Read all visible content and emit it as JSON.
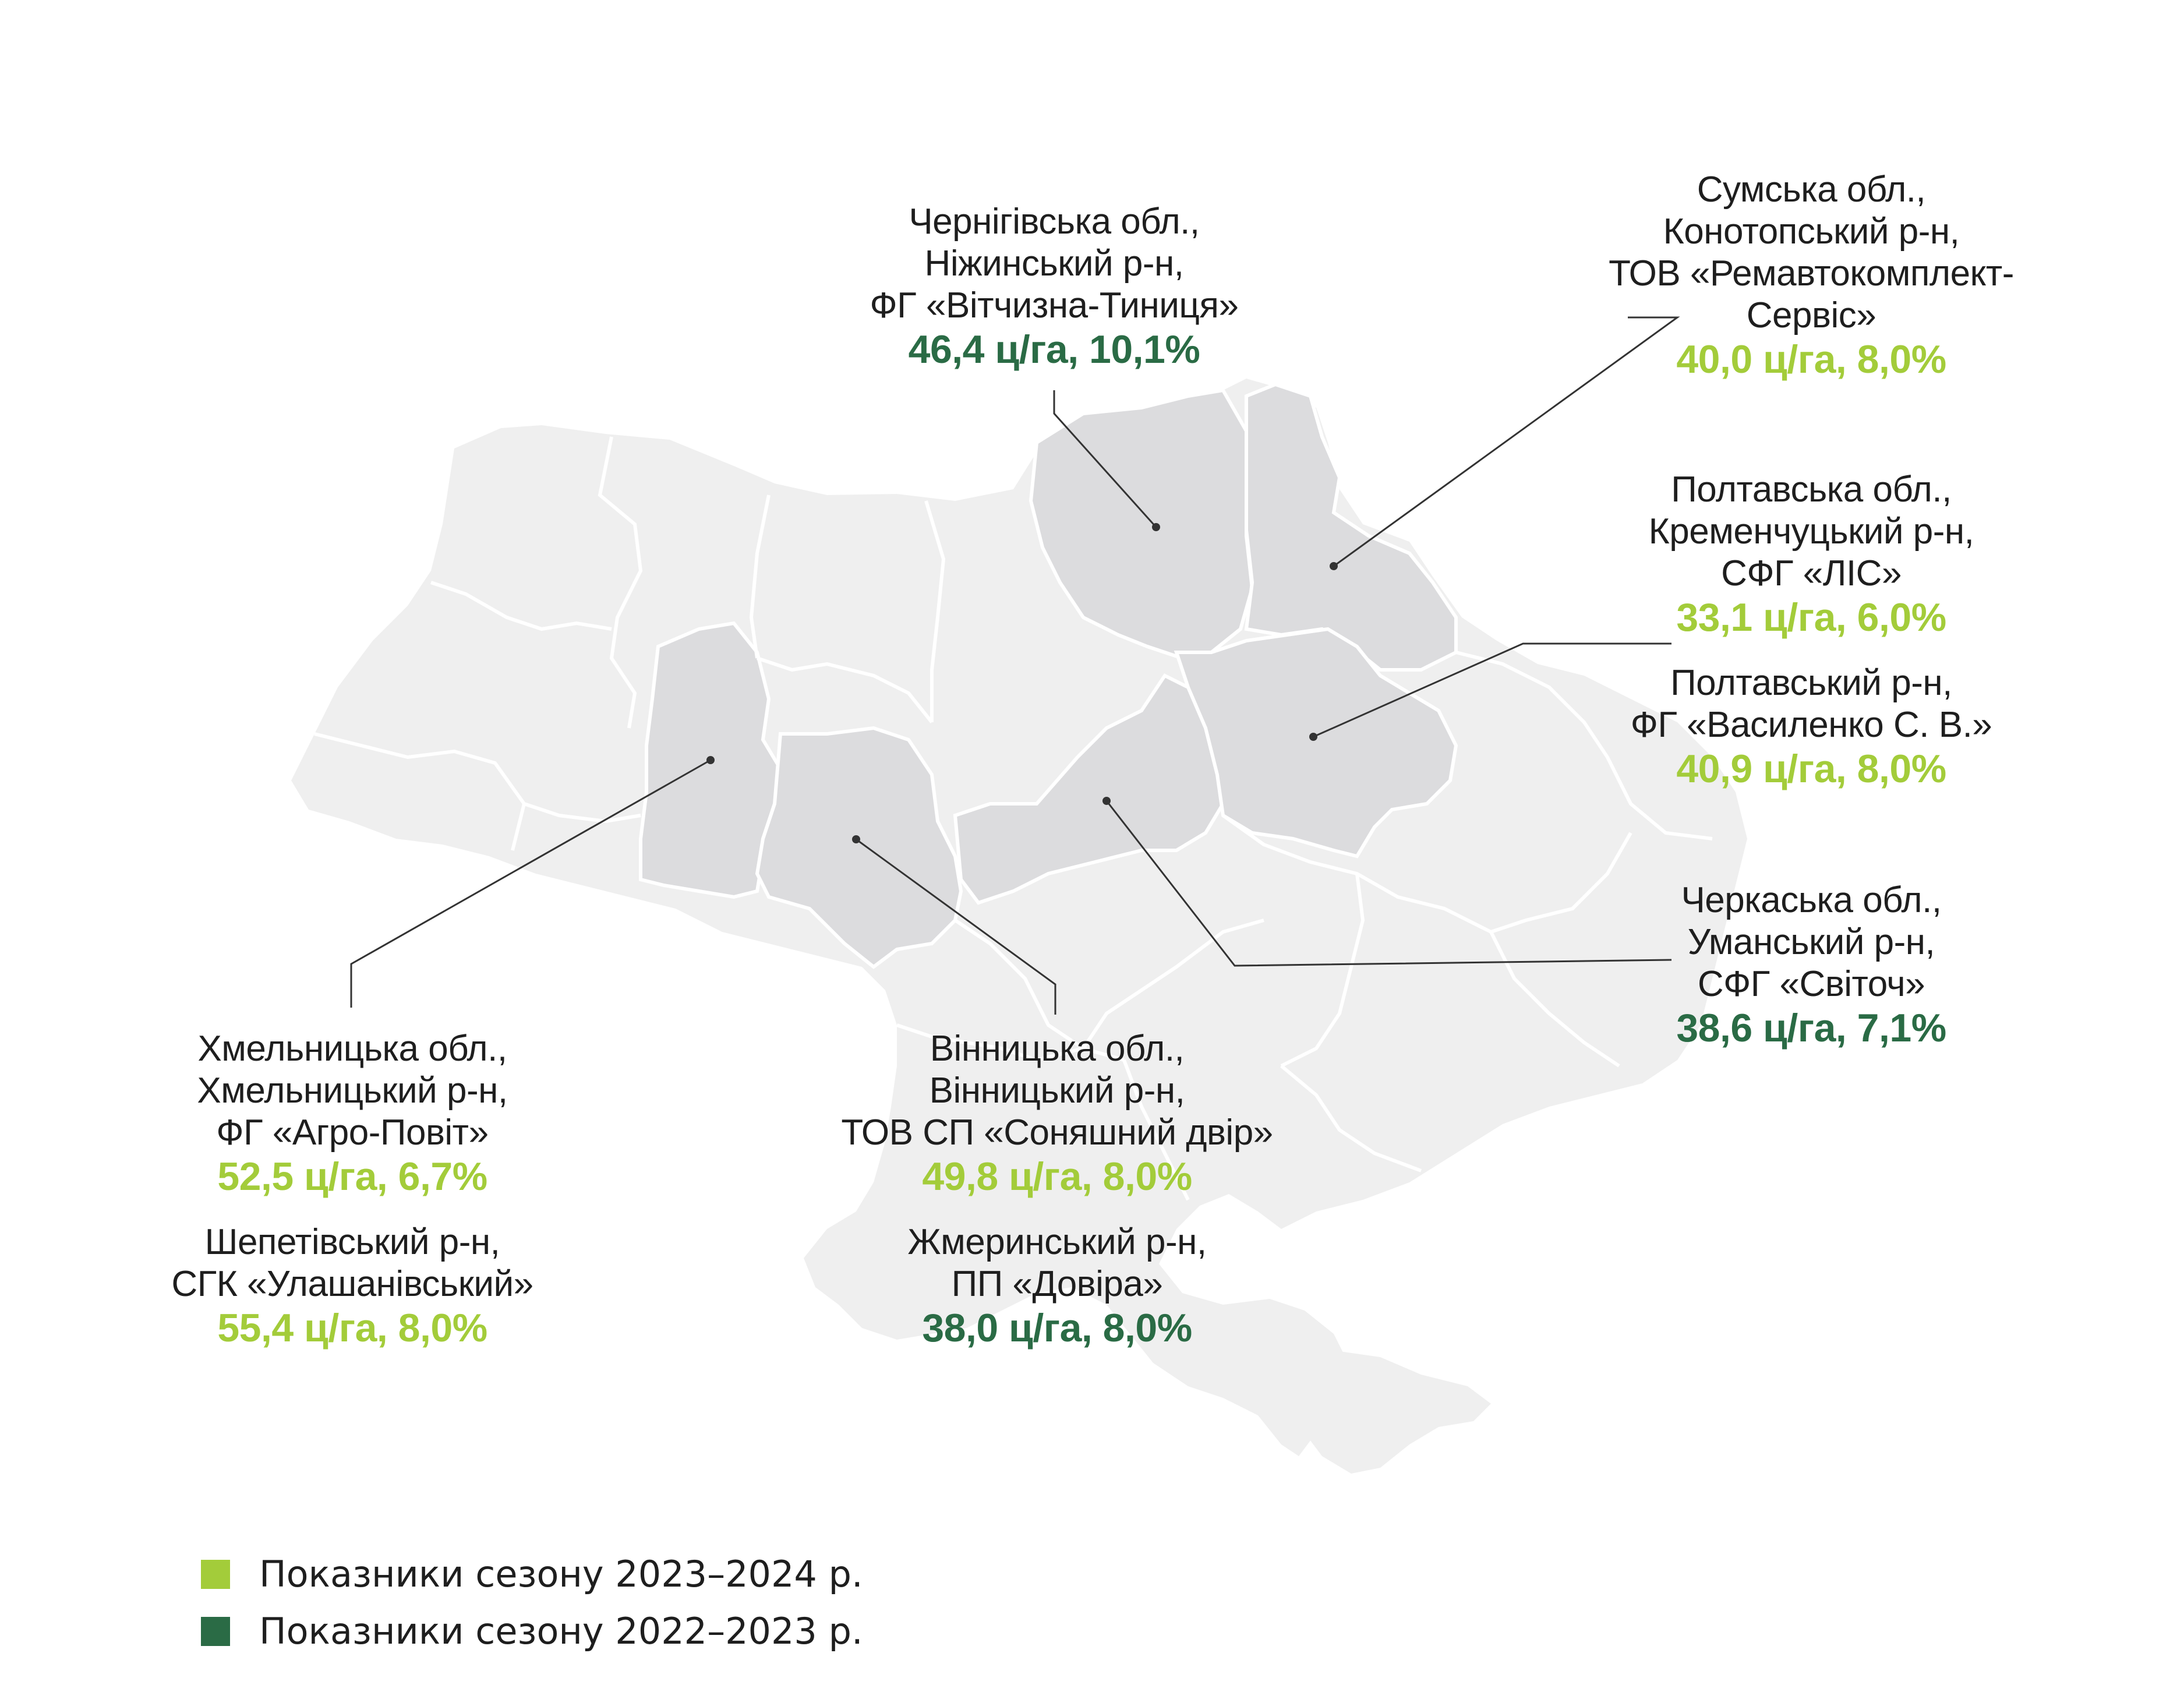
{
  "colors": {
    "season_2023_2024": "#a3cc3a",
    "season_2022_2023": "#2a6b45",
    "map_background_region": "#efefef",
    "map_highlight_region": "#dcdcde",
    "region_border": "#ffffff",
    "leader_line": "#333333"
  },
  "callouts": {
    "chernihiv": {
      "lines": [
        "Чернігівська обл.,",
        "Ніжинський р-н,",
        "ФГ «Вітчизна-Тиниця»"
      ],
      "value": "46,4 ц/га, 10,1%",
      "season": "2022-2023"
    },
    "sumy": {
      "lines": [
        "Сумська обл.,",
        "Конотопський р-н,",
        "ТОВ «Ремавтокомплект-",
        "Сервіс»"
      ],
      "value": "40,0 ц/га, 8,0%",
      "season": "2023-2024"
    },
    "poltava": {
      "lines": [
        "Полтавська обл.,",
        "Кременчуцький р-н,",
        "СФГ «ЛІС»"
      ],
      "value": "33,1 ц/га, 6,0%",
      "season": "2023-2024",
      "lines2": [
        "Полтавський р-н,",
        "ФГ «Василенко С. В.»"
      ],
      "value2": "40,9 ц/га, 8,0%",
      "season2": "2023-2024"
    },
    "cherkasy": {
      "lines": [
        "Черкаська обл.,",
        "Уманський р-н,",
        "СФГ «Світоч»"
      ],
      "value": "38,6 ц/га, 7,1%",
      "season": "2022-2023"
    },
    "khmelnytskyi": {
      "lines": [
        "Хмельницька обл.,",
        "Хмельницький р-н,",
        "ФГ «Агро-Повіт»"
      ],
      "value": "52,5 ц/га, 6,7%",
      "season": "2023-2024",
      "lines2": [
        "Шепетівський р-н,",
        "СГК «Улашанівський»"
      ],
      "value2": "55,4 ц/га, 8,0%",
      "season2": "2023-2024"
    },
    "vinnytsia": {
      "lines": [
        "Вінницька обл.,",
        "Вінницький р-н,",
        "ТОВ СП «Соняшний двір»"
      ],
      "value": "49,8 ц/га, 8,0%",
      "season": "2023-2024",
      "lines2": [
        "Жмеринський р-н,",
        "ПП «Довіра»"
      ],
      "value2": "38,0 ц/га, 8,0%",
      "season2": "2022-2023"
    }
  },
  "legend": [
    {
      "label": "Показники сезону 2023–2024 р.",
      "color": "#a3cc3a"
    },
    {
      "label": "Показники сезону 2022–2023 р.",
      "color": "#2a6b45"
    }
  ]
}
